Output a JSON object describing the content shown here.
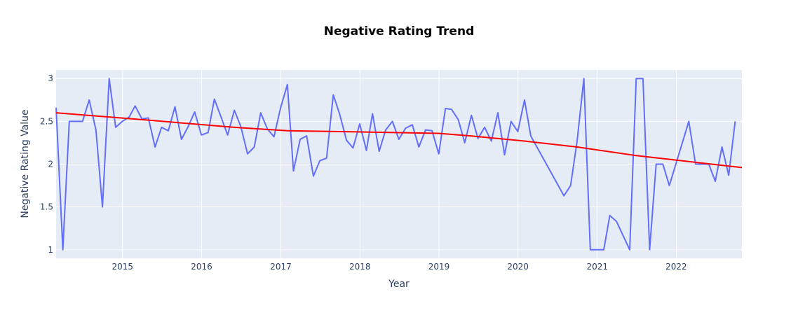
{
  "chart_data": {
    "type": "line",
    "title": "Negative Rating Trend",
    "xlabel": "Year",
    "ylabel": "Negative Rating Value",
    "xlim": [
      "2014-02-28",
      "2022-10-31"
    ],
    "ylim": [
      0.9,
      3.1
    ],
    "x_ticks": [
      "2015-01-01",
      "2016-01-01",
      "2017-01-01",
      "2018-01-01",
      "2019-01-01",
      "2020-01-01",
      "2021-01-01",
      "2022-01-01"
    ],
    "x_tick_labels": [
      "2015",
      "2016",
      "2017",
      "2018",
      "2019",
      "2020",
      "2021",
      "2022"
    ],
    "y_ticks": [
      1,
      1.5,
      2,
      2.5,
      3
    ],
    "y_tick_labels": [
      "1",
      "1.5",
      "2",
      "2.5",
      "3"
    ],
    "grid": true,
    "colors": {
      "plot_bg": "#e5ecf6",
      "grid": "#ffffff",
      "series": "#636efa",
      "trend": "#ff0000"
    },
    "series": [
      {
        "values": [
          [
            "2014-02-28",
            2.66
          ],
          [
            "2014-03-31",
            1.0
          ],
          [
            "2014-04-30",
            2.5
          ],
          [
            "2014-05-31",
            2.5
          ],
          [
            "2014-06-30",
            2.5
          ],
          [
            "2014-07-31",
            2.75
          ],
          [
            "2014-08-31",
            2.4
          ],
          [
            "2014-09-30",
            1.5
          ],
          [
            "2014-10-31",
            3.0
          ],
          [
            "2014-11-30",
            2.43
          ],
          [
            "2014-12-31",
            2.5
          ],
          [
            "2015-01-31",
            2.55
          ],
          [
            "2015-02-28",
            2.68
          ],
          [
            "2015-03-31",
            2.53
          ],
          [
            "2015-04-30",
            2.54
          ],
          [
            "2015-05-31",
            2.2
          ],
          [
            "2015-06-30",
            2.43
          ],
          [
            "2015-07-31",
            2.39
          ],
          [
            "2015-08-31",
            2.67
          ],
          [
            "2015-09-30",
            2.29
          ],
          [
            "2015-10-31",
            2.44
          ],
          [
            "2015-11-30",
            2.61
          ],
          [
            "2015-12-31",
            2.34
          ],
          [
            "2016-01-31",
            2.37
          ],
          [
            "2016-02-29",
            2.76
          ],
          [
            "2016-03-31",
            2.55
          ],
          [
            "2016-04-30",
            2.34
          ],
          [
            "2016-05-31",
            2.63
          ],
          [
            "2016-06-30",
            2.44
          ],
          [
            "2016-07-31",
            2.12
          ],
          [
            "2016-08-31",
            2.2
          ],
          [
            "2016-09-30",
            2.6
          ],
          [
            "2016-10-31",
            2.41
          ],
          [
            "2016-11-30",
            2.32
          ],
          [
            "2016-12-31",
            2.66
          ],
          [
            "2017-01-31",
            2.93
          ],
          [
            "2017-02-28",
            1.92
          ],
          [
            "2017-03-31",
            2.29
          ],
          [
            "2017-04-30",
            2.33
          ],
          [
            "2017-05-31",
            1.86
          ],
          [
            "2017-06-30",
            2.04
          ],
          [
            "2017-07-31",
            2.07
          ],
          [
            "2017-08-31",
            2.81
          ],
          [
            "2017-09-30",
            2.58
          ],
          [
            "2017-10-31",
            2.28
          ],
          [
            "2017-11-30",
            2.19
          ],
          [
            "2017-12-31",
            2.47
          ],
          [
            "2018-01-31",
            2.16
          ],
          [
            "2018-02-28",
            2.59
          ],
          [
            "2018-03-31",
            2.15
          ],
          [
            "2018-04-30",
            2.4
          ],
          [
            "2018-05-31",
            2.5
          ],
          [
            "2018-06-30",
            2.29
          ],
          [
            "2018-07-31",
            2.42
          ],
          [
            "2018-08-31",
            2.46
          ],
          [
            "2018-09-30",
            2.2
          ],
          [
            "2018-10-31",
            2.4
          ],
          [
            "2018-11-30",
            2.39
          ],
          [
            "2018-12-31",
            2.12
          ],
          [
            "2019-01-31",
            2.65
          ],
          [
            "2019-02-28",
            2.64
          ],
          [
            "2019-03-31",
            2.52
          ],
          [
            "2019-04-30",
            2.25
          ],
          [
            "2019-05-31",
            2.57
          ],
          [
            "2019-06-30",
            2.3
          ],
          [
            "2019-07-31",
            2.43
          ],
          [
            "2019-08-31",
            2.27
          ],
          [
            "2019-09-30",
            2.6
          ],
          [
            "2019-10-31",
            2.11
          ],
          [
            "2019-11-30",
            2.5
          ],
          [
            "2019-12-31",
            2.38
          ],
          [
            "2020-01-31",
            2.75
          ],
          [
            "2020-02-29",
            2.33
          ],
          [
            "2020-07-31",
            1.63
          ],
          [
            "2020-08-31",
            1.75
          ],
          [
            "2020-09-30",
            2.27
          ],
          [
            "2020-10-31",
            3.0
          ],
          [
            "2020-11-30",
            1.0
          ],
          [
            "2021-01-31",
            1.0
          ],
          [
            "2021-02-28",
            1.4
          ],
          [
            "2021-03-31",
            1.33
          ],
          [
            "2021-05-31",
            1.0
          ],
          [
            "2021-06-30",
            3.0
          ],
          [
            "2021-07-31",
            3.0
          ],
          [
            "2021-08-31",
            1.0
          ],
          [
            "2021-09-30",
            2.0
          ],
          [
            "2021-10-31",
            2.0
          ],
          [
            "2021-11-30",
            1.75
          ],
          [
            "2022-02-28",
            2.5
          ],
          [
            "2022-03-31",
            2.0
          ],
          [
            "2022-05-31",
            2.0
          ],
          [
            "2022-06-30",
            1.8
          ],
          [
            "2022-07-31",
            2.2
          ],
          [
            "2022-08-31",
            1.87
          ],
          [
            "2022-09-30",
            2.5
          ]
        ]
      },
      {
        "values": [
          [
            "2014-02-28",
            2.6
          ],
          [
            "2015-03-31",
            2.52
          ],
          [
            "2016-05-31",
            2.43
          ],
          [
            "2017-01-31",
            2.39
          ],
          [
            "2017-09-30",
            2.38
          ],
          [
            "2018-12-31",
            2.36
          ],
          [
            "2019-05-31",
            2.33
          ],
          [
            "2020-01-31",
            2.27
          ],
          [
            "2020-09-30",
            2.2
          ],
          [
            "2021-06-30",
            2.1
          ],
          [
            "2022-10-31",
            1.96
          ]
        ]
      }
    ]
  }
}
